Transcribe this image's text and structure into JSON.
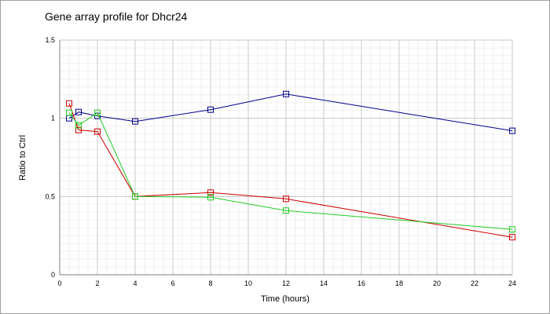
{
  "chart_data": {
    "type": "line",
    "title": "Gene array profile for Dhcr24",
    "xlabel": "Time (hours)",
    "ylabel": "Ratio to Ctrl",
    "xlim": [
      0,
      24
    ],
    "ylim": [
      0,
      1.5
    ],
    "x_ticks": [
      "0",
      "2",
      "4",
      "6",
      "8",
      "10",
      "12",
      "14",
      "16",
      "18",
      "20",
      "22",
      "24"
    ],
    "y_ticks": [
      "0",
      "0.5",
      "1",
      "1.5"
    ],
    "grid": true,
    "legend": "none",
    "series": [
      {
        "color": "#00008b",
        "x": [
          0.5,
          1,
          2,
          4,
          8,
          12,
          24
        ],
        "values": [
          1.0,
          1.04,
          1.015,
          0.98,
          1.055,
          1.155,
          0.92
        ]
      },
      {
        "color": "#cc0000",
        "x": [
          0.5,
          1,
          2,
          4,
          8,
          12,
          24
        ],
        "values": [
          1.095,
          0.925,
          0.915,
          0.5,
          0.525,
          0.485,
          0.24
        ]
      },
      {
        "color": "#22cc22",
        "x": [
          0.5,
          1,
          2,
          4,
          8,
          12,
          24
        ],
        "values": [
          1.035,
          0.955,
          1.035,
          0.5,
          0.495,
          0.41,
          0.29
        ]
      }
    ]
  }
}
